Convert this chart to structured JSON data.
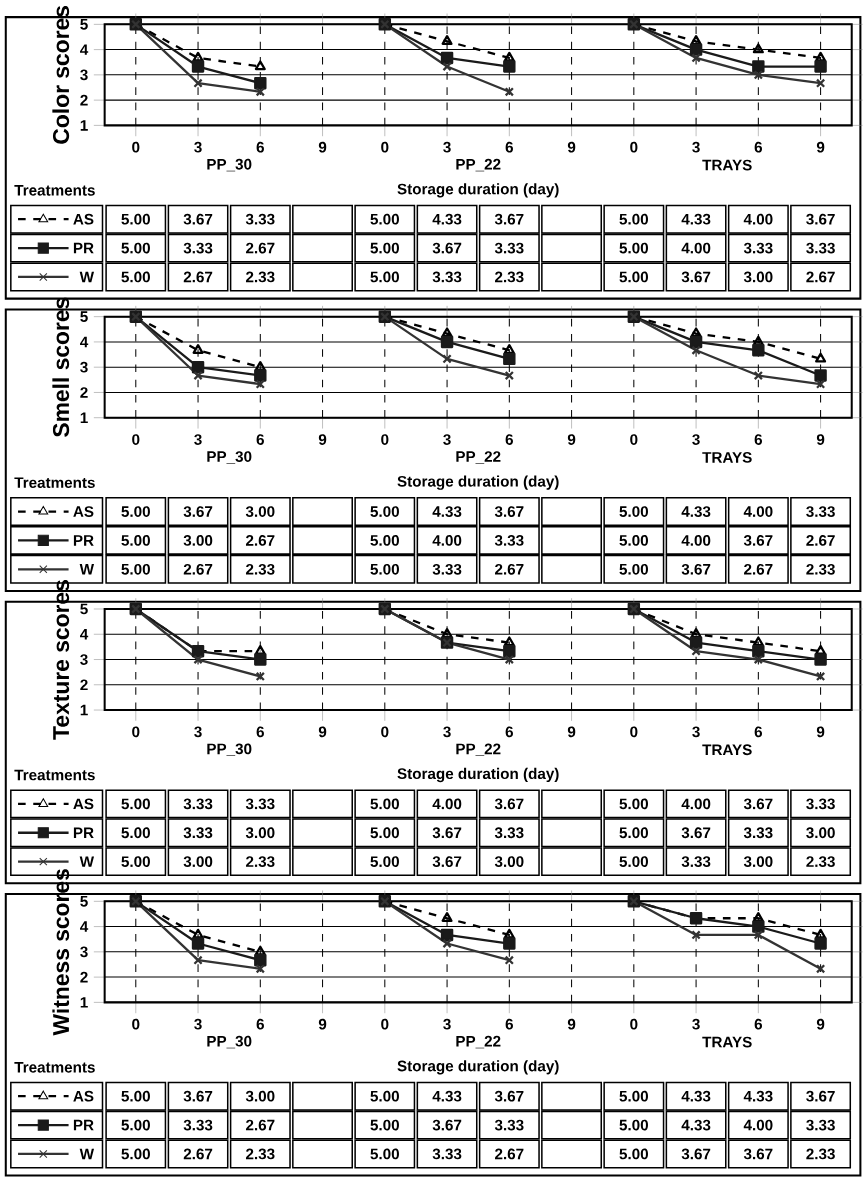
{
  "chart_data": [
    {
      "type": "line",
      "ylabel": "Color scores",
      "xlabel": "Storage duration (day)",
      "categories": [
        "0",
        "3",
        "6",
        "9",
        "0",
        "3",
        "6",
        "9",
        "0",
        "3",
        "6",
        "9"
      ],
      "annotations": [
        "PP_30",
        "PP_22",
        "TRAYS",
        "Treatments"
      ],
      "ylim": [
        1,
        5
      ],
      "yticks": [
        1,
        2,
        3,
        4,
        5
      ],
      "grid": true,
      "legend": "bottom left",
      "series": [
        {
          "name": "AS",
          "color": "#000000",
          "marker": "triangle",
          "line_style": "dashed",
          "values": [
            5.0,
            3.67,
            3.33,
            null,
            5.0,
            4.33,
            3.67,
            null,
            5.0,
            4.33,
            4.0,
            3.67
          ],
          "value_labels": [
            "5.00",
            "3.67",
            "3.33",
            null,
            "5.00",
            "4.33",
            "3.67",
            null,
            "5.00",
            "4.33",
            "4.00",
            "3.67"
          ]
        },
        {
          "name": "PR",
          "color": "#1a1a1a",
          "marker": "square",
          "line_style": "solid",
          "values": [
            5.0,
            3.33,
            2.67,
            null,
            5.0,
            3.67,
            3.33,
            null,
            5.0,
            4.0,
            3.33,
            3.33
          ],
          "value_labels": [
            "5.00",
            "3.33",
            "2.67",
            null,
            "5.00",
            "3.67",
            "3.33",
            null,
            "5.00",
            "4.00",
            "3.33",
            "3.33"
          ]
        },
        {
          "name": "W",
          "color": "#333333",
          "marker": "cross",
          "line_style": "solid",
          "values": [
            5.0,
            2.67,
            2.33,
            null,
            5.0,
            3.33,
            2.33,
            null,
            5.0,
            3.67,
            3.0,
            2.67
          ],
          "value_labels": [
            "5.00",
            "2.67",
            "2.33",
            null,
            "5.00",
            "3.33",
            "2.33",
            null,
            "5.00",
            "3.67",
            "3.00",
            "2.67"
          ]
        }
      ]
    },
    {
      "type": "line",
      "ylabel": "Smell scores",
      "xlabel": "Storage duration (day)",
      "categories": [
        "0",
        "3",
        "6",
        "9",
        "0",
        "3",
        "6",
        "9",
        "0",
        "3",
        "6",
        "9"
      ],
      "annotations": [
        "PP_30",
        "PP_22",
        "TRAYS",
        "Treatments"
      ],
      "ylim": [
        1,
        5
      ],
      "yticks": [
        1,
        2,
        3,
        4,
        5
      ],
      "grid": true,
      "legend": "bottom left",
      "series": [
        {
          "name": "AS",
          "color": "#000000",
          "marker": "triangle",
          "line_style": "dashed",
          "values": [
            5.0,
            3.67,
            3.0,
            null,
            5.0,
            4.33,
            3.67,
            null,
            5.0,
            4.33,
            4.0,
            3.33
          ],
          "value_labels": [
            "5.00",
            "3.67",
            "3.00",
            null,
            "5.00",
            "4.33",
            "3.67",
            null,
            "5.00",
            "4.33",
            "4.00",
            "3.33"
          ]
        },
        {
          "name": "PR",
          "color": "#1a1a1a",
          "marker": "square",
          "line_style": "solid",
          "values": [
            5.0,
            3.0,
            2.67,
            null,
            5.0,
            4.0,
            3.33,
            null,
            5.0,
            4.0,
            3.67,
            2.67
          ],
          "value_labels": [
            "5.00",
            "3.00",
            "2.67",
            null,
            "5.00",
            "4.00",
            "3.33",
            null,
            "5.00",
            "4.00",
            "3.67",
            "2.67"
          ]
        },
        {
          "name": "W",
          "color": "#333333",
          "marker": "cross",
          "line_style": "solid",
          "values": [
            5.0,
            2.67,
            2.33,
            null,
            5.0,
            3.33,
            2.67,
            null,
            5.0,
            3.67,
            2.67,
            2.33
          ],
          "value_labels": [
            "5.00",
            "2.67",
            "2.33",
            null,
            "5.00",
            "3.33",
            "2.67",
            null,
            "5.00",
            "3.67",
            "2.67",
            "2.33"
          ]
        }
      ]
    },
    {
      "type": "line",
      "ylabel": "Texture scores",
      "xlabel": "Storage duration (day)",
      "categories": [
        "0",
        "3",
        "6",
        "9",
        "0",
        "3",
        "6",
        "9",
        "0",
        "3",
        "6",
        "9"
      ],
      "annotations": [
        "PP_30",
        "PP_22",
        "TRAYS",
        "Treatments"
      ],
      "ylim": [
        1,
        5
      ],
      "yticks": [
        1,
        2,
        3,
        4,
        5
      ],
      "grid": true,
      "legend": "bottom left",
      "series": [
        {
          "name": "AS",
          "color": "#000000",
          "marker": "triangle",
          "line_style": "dashed",
          "values": [
            5.0,
            3.33,
            3.33,
            null,
            5.0,
            4.0,
            3.67,
            null,
            5.0,
            4.0,
            3.67,
            3.33
          ],
          "value_labels": [
            "5.00",
            "3.33",
            "3.33",
            null,
            "5.00",
            "4.00",
            "3.67",
            null,
            "5.00",
            "4.00",
            "3.67",
            "3.33"
          ]
        },
        {
          "name": "PR",
          "color": "#1a1a1a",
          "marker": "square",
          "line_style": "solid",
          "values": [
            5.0,
            3.33,
            3.0,
            null,
            5.0,
            3.67,
            3.33,
            null,
            5.0,
            3.67,
            3.33,
            3.0
          ],
          "value_labels": [
            "5.00",
            "3.33",
            "3.00",
            null,
            "5.00",
            "3.67",
            "3.33",
            null,
            "5.00",
            "3.67",
            "3.33",
            "3.00"
          ]
        },
        {
          "name": "W",
          "color": "#333333",
          "marker": "cross",
          "line_style": "solid",
          "values": [
            5.0,
            3.0,
            2.33,
            null,
            5.0,
            3.67,
            3.0,
            null,
            5.0,
            3.33,
            3.0,
            2.33
          ],
          "value_labels": [
            "5.00",
            "3.00",
            "2.33",
            null,
            "5.00",
            "3.67",
            "3.00",
            null,
            "5.00",
            "3.33",
            "3.00",
            "2.33"
          ]
        }
      ]
    },
    {
      "type": "line",
      "ylabel": "Witness scores",
      "xlabel": "Storage duration (day)",
      "categories": [
        "0",
        "3",
        "6",
        "9",
        "0",
        "3",
        "6",
        "9",
        "0",
        "3",
        "6",
        "9"
      ],
      "annotations": [
        "PP_30",
        "PP_22",
        "TRAYS",
        "Treatments"
      ],
      "ylim": [
        1,
        5
      ],
      "yticks": [
        1,
        2,
        3,
        4,
        5
      ],
      "grid": true,
      "legend": "bottom left",
      "series": [
        {
          "name": "AS",
          "color": "#000000",
          "marker": "triangle",
          "line_style": "dashed",
          "values": [
            5.0,
            3.67,
            3.0,
            null,
            5.0,
            4.33,
            3.67,
            null,
            5.0,
            4.33,
            4.33,
            3.67
          ],
          "value_labels": [
            "5.00",
            "3.67",
            "3.00",
            null,
            "5.00",
            "4.33",
            "3.67",
            null,
            "5.00",
            "4.33",
            "4.33",
            "3.67"
          ]
        },
        {
          "name": "PR",
          "color": "#1a1a1a",
          "marker": "square",
          "line_style": "solid",
          "values": [
            5.0,
            3.33,
            2.67,
            null,
            5.0,
            3.67,
            3.33,
            null,
            5.0,
            4.33,
            4.0,
            3.33
          ],
          "value_labels": [
            "5.00",
            "3.33",
            "2.67",
            null,
            "5.00",
            "3.67",
            "3.33",
            null,
            "5.00",
            "4.33",
            "4.00",
            "3.33"
          ]
        },
        {
          "name": "W",
          "color": "#333333",
          "marker": "cross",
          "line_style": "solid",
          "values": [
            5.0,
            2.67,
            2.33,
            null,
            5.0,
            3.33,
            2.67,
            null,
            5.0,
            3.67,
            3.67,
            2.33
          ],
          "value_labels": [
            "5.00",
            "2.67",
            "2.33",
            null,
            "5.00",
            "3.33",
            "2.67",
            null,
            "5.00",
            "3.67",
            "3.67",
            "2.33"
          ]
        }
      ]
    }
  ]
}
